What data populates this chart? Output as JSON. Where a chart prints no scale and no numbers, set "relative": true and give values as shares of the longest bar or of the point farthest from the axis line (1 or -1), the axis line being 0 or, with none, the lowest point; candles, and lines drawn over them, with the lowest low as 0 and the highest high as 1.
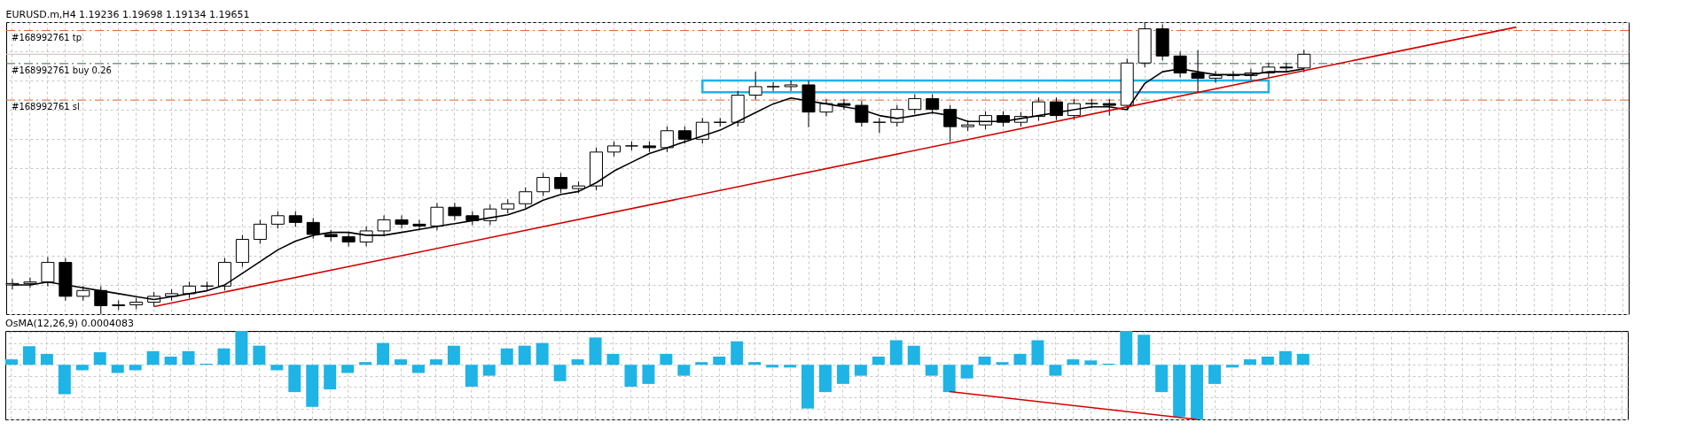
{
  "chart_data": [
    {
      "type": "candlestick",
      "title": "EURUSD.m,H4  1.19236 1.19698 1.19134 1.19651",
      "relative": true,
      "tick_labels": false,
      "grid": true,
      "color": "#000000",
      "categories": [
        null,
        null,
        null,
        null,
        null,
        null,
        null,
        null,
        null,
        null,
        null,
        null,
        null,
        null,
        null,
        null,
        null,
        null,
        null,
        null,
        null,
        null,
        null,
        null,
        null,
        null,
        null,
        null,
        null,
        null,
        null,
        null,
        null,
        null,
        null,
        null,
        null,
        null,
        null,
        null,
        null,
        null,
        null,
        null,
        null,
        null,
        null,
        null,
        null,
        null,
        null,
        null,
        null,
        null,
        null,
        null,
        null,
        null,
        null,
        null,
        null,
        null,
        null,
        null,
        null,
        null,
        null,
        null,
        null,
        null,
        null,
        null,
        null,
        null,
        null,
        null,
        null,
        null,
        null,
        null,
        null,
        null,
        null,
        null,
        null,
        null,
        null,
        null,
        null,
        null,
        null,
        null
      ],
      "ohlc": [
        [
          0.1,
          0.12,
          0.085,
          0.105
        ],
        [
          0.105,
          0.125,
          0.09,
          0.11
        ],
        [
          0.11,
          0.195,
          0.095,
          0.177
        ],
        [
          0.177,
          0.192,
          0.046,
          0.061
        ],
        [
          0.061,
          0.096,
          0.046,
          0.081
        ],
        [
          0.081,
          0.096,
          0,
          0.029
        ],
        [
          0.029,
          0.047,
          0.014,
          0.032
        ],
        [
          0.032,
          0.056,
          0.017,
          0.041
        ],
        [
          0.041,
          0.076,
          0.026,
          0.061
        ],
        [
          0.061,
          0.085,
          0.046,
          0.07
        ],
        [
          0.07,
          0.111,
          0.055,
          0.096
        ],
        [
          0.096,
          0.111,
          0.081,
          0.096
        ],
        [
          0.096,
          0.192,
          0.081,
          0.177
        ],
        [
          0.177,
          0.271,
          0.162,
          0.256
        ],
        [
          0.256,
          0.323,
          0.241,
          0.308
        ],
        [
          0.308,
          0.352,
          0.293,
          0.337
        ],
        [
          0.337,
          0.352,
          0.299,
          0.314
        ],
        [
          0.314,
          0.329,
          0.258,
          0.273
        ],
        [
          0.273,
          0.288,
          0.25,
          0.265
        ],
        [
          0.265,
          0.28,
          0.232,
          0.247
        ],
        [
          0.247,
          0.3,
          0.232,
          0.285
        ],
        [
          0.285,
          0.338,
          0.27,
          0.323
        ],
        [
          0.323,
          0.338,
          0.293,
          0.308
        ],
        [
          0.308,
          0.323,
          0.287,
          0.302
        ],
        [
          0.302,
          0.381,
          0.287,
          0.366
        ],
        [
          0.366,
          0.381,
          0.322,
          0.337
        ],
        [
          0.337,
          0.352,
          0.305,
          0.32
        ],
        [
          0.32,
          0.375,
          0.305,
          0.36
        ],
        [
          0.36,
          0.393,
          0.345,
          0.378
        ],
        [
          0.378,
          0.434,
          0.363,
          0.419
        ],
        [
          0.419,
          0.483,
          0.404,
          0.468
        ],
        [
          0.468,
          0.483,
          0.415,
          0.43
        ],
        [
          0.43,
          0.454,
          0.415,
          0.439
        ],
        [
          0.439,
          0.57,
          0.424,
          0.555
        ],
        [
          0.555,
          0.591,
          0.54,
          0.576
        ],
        [
          0.576,
          0.591,
          0.561,
          0.576
        ],
        [
          0.576,
          0.591,
          0.555,
          0.57
        ],
        [
          0.57,
          0.643,
          0.555,
          0.628
        ],
        [
          0.628,
          0.643,
          0.584,
          0.599
        ],
        [
          0.599,
          0.672,
          0.584,
          0.657
        ],
        [
          0.657,
          0.672,
          0.642,
          0.657
        ],
        [
          0.657,
          0.765,
          0.642,
          0.75
        ],
        [
          0.75,
          0.83,
          0.735,
          0.779
        ],
        [
          0.779,
          0.794,
          0.764,
          0.779
        ],
        [
          0.779,
          0.8,
          0.764,
          0.785
        ],
        [
          0.785,
          0.8,
          0.64,
          0.692
        ],
        [
          0.692,
          0.736,
          0.677,
          0.721
        ],
        [
          0.721,
          0.736,
          0.7,
          0.715
        ],
        [
          0.715,
          0.73,
          0.642,
          0.657
        ],
        [
          0.657,
          0.672,
          0.62,
          0.657
        ],
        [
          0.657,
          0.716,
          0.642,
          0.701
        ],
        [
          0.701,
          0.753,
          0.686,
          0.738
        ],
        [
          0.738,
          0.753,
          0.686,
          0.701
        ],
        [
          0.701,
          0.716,
          0.59,
          0.642
        ],
        [
          0.642,
          0.663,
          0.627,
          0.648
        ],
        [
          0.648,
          0.695,
          0.633,
          0.68
        ],
        [
          0.68,
          0.695,
          0.642,
          0.657
        ],
        [
          0.657,
          0.692,
          0.642,
          0.677
        ],
        [
          0.677,
          0.742,
          0.662,
          0.727
        ],
        [
          0.727,
          0.742,
          0.665,
          0.68
        ],
        [
          0.68,
          0.736,
          0.665,
          0.721
        ],
        [
          0.721,
          0.736,
          0.706,
          0.721
        ],
        [
          0.721,
          0.736,
          0.68,
          0.715
        ],
        [
          0.715,
          0.875,
          0.7,
          0.86
        ],
        [
          0.86,
          1,
          0.845,
          0.977
        ],
        [
          0.977,
          0.992,
          0.869,
          0.884
        ],
        [
          0.884,
          0.899,
          0.811,
          0.826
        ],
        [
          0.826,
          0.904,
          0.76,
          0.808
        ],
        [
          0.808,
          0.832,
          0.793,
          0.817
        ],
        [
          0.817,
          0.832,
          0.802,
          0.817
        ],
        [
          0.817,
          0.841,
          0.802,
          0.826
        ],
        [
          0.826,
          0.861,
          0.811,
          0.846
        ],
        [
          0.846,
          0.861,
          0.828,
          0.843
        ],
        [
          0.843,
          0.905,
          0.828,
          0.89
        ],
        null,
        null,
        null,
        null,
        null,
        null,
        null,
        null,
        null,
        null,
        null,
        null,
        null,
        null,
        null,
        null,
        null,
        null
      ],
      "series": [
        {
          "type": "line",
          "color": "#000000",
          "values": [
            0.1,
            0.1,
            0.11,
            0.1,
            0.09,
            0.08,
            0.07,
            0.06,
            0.05,
            0.06,
            0.07,
            0.08,
            0.1,
            0.14,
            0.18,
            0.22,
            0.25,
            0.27,
            0.28,
            0.28,
            0.27,
            0.27,
            0.28,
            0.29,
            0.3,
            0.31,
            0.32,
            0.33,
            0.34,
            0.36,
            0.39,
            0.41,
            0.42,
            0.45,
            0.49,
            0.52,
            0.55,
            0.57,
            0.59,
            0.61,
            0.63,
            0.66,
            0.69,
            0.72,
            0.74,
            0.73,
            0.72,
            0.71,
            0.7,
            0.68,
            0.67,
            0.68,
            0.69,
            0.68,
            0.66,
            0.66,
            0.66,
            0.67,
            0.68,
            0.69,
            0.7,
            0.71,
            0.71,
            0.7,
            0.79,
            0.83,
            0.84,
            0.83,
            0.82,
            0.82,
            0.82,
            0.83,
            0.83,
            0.84,
            null,
            null,
            null,
            null,
            null,
            null,
            null,
            null,
            null,
            null,
            null,
            null,
            null,
            null,
            null,
            null,
            null,
            null
          ]
        },
        {
          "type": "line",
          "color": "#d40000",
          "values": [
            null,
            null,
            null,
            null,
            null,
            null,
            null,
            null,
            0.026,
            null,
            null,
            null,
            null,
            null,
            null,
            null,
            null,
            null,
            null,
            null,
            null,
            null,
            null,
            null,
            null,
            null,
            null,
            null,
            null,
            null,
            null,
            null,
            null,
            null,
            null,
            null,
            null,
            null,
            null,
            null,
            null,
            null,
            null,
            null,
            null,
            null,
            null,
            null,
            null,
            null,
            null,
            null,
            null,
            null,
            null,
            null,
            null,
            null,
            null,
            null,
            null,
            null,
            null,
            null,
            null,
            null,
            null,
            null,
            null,
            null,
            null,
            null,
            null,
            null,
            null,
            null,
            null,
            null,
            null,
            null,
            null,
            null,
            null,
            null,
            null,
            0.983,
            null,
            null,
            null,
            null,
            null,
            null
          ]
        }
      ],
      "ref_lines": [
        {
          "axis": "y",
          "value": 0.971,
          "label": "#168992761 tp",
          "color": "#e0602a",
          "line_style": "dashed"
        },
        {
          "axis": "y",
          "value": 0.89,
          "color": "#c0c0c0",
          "line_style": "solid"
        },
        {
          "axis": "y",
          "value": 0.858,
          "label": "#168992761 buy 0.26",
          "color": "#2e6b3a",
          "line_style": "dashed"
        },
        {
          "axis": "y",
          "value": 0.733,
          "label": "#168992761 sl",
          "color": "#e0602a",
          "line_style": "dashed"
        }
      ]
    },
    {
      "type": "bar",
      "title": "OsMA(12,26,9) 0.0004083",
      "relative": true,
      "tick_labels": false,
      "grid": true,
      "color": "#1eb4e6",
      "categories": [
        null,
        null,
        null,
        null,
        null,
        null,
        null,
        null,
        null,
        null,
        null,
        null,
        null,
        null,
        null,
        null,
        null,
        null,
        null,
        null,
        null,
        null,
        null,
        null,
        null,
        null,
        null,
        null,
        null,
        null,
        null,
        null,
        null,
        null,
        null,
        null,
        null,
        null,
        null,
        null,
        null,
        null,
        null,
        null,
        null,
        null,
        null,
        null,
        null,
        null,
        null,
        null,
        null,
        null,
        null,
        null,
        null,
        null,
        null,
        null,
        null,
        null,
        null,
        null,
        null,
        null,
        null,
        null,
        null,
        null,
        null,
        null,
        null,
        null,
        null,
        null,
        null,
        null,
        null,
        null,
        null,
        null,
        null,
        null,
        null,
        null,
        null,
        null,
        null,
        null,
        null,
        null
      ],
      "values": [
        0.1,
        0.34,
        0.2,
        -0.54,
        -0.1,
        0.23,
        -0.15,
        -0.1,
        0.25,
        0.15,
        0.25,
        0.02,
        0.3,
        0.62,
        0.35,
        -0.1,
        -0.5,
        -0.77,
        -0.45,
        -0.15,
        0.05,
        0.4,
        0.1,
        -0.15,
        0.1,
        0.35,
        -0.4,
        -0.2,
        0.3,
        0.35,
        0.4,
        -0.3,
        0.1,
        0.5,
        0.2,
        -0.4,
        -0.35,
        0.2,
        -0.2,
        0.05,
        0.15,
        0.43,
        0.05,
        -0.05,
        -0.05,
        -0.8,
        -0.5,
        -0.35,
        -0.2,
        0.15,
        0.45,
        0.35,
        -0.2,
        -0.5,
        -0.25,
        0.15,
        0.05,
        0.2,
        0.45,
        -0.2,
        0.1,
        0.08,
        0.02,
        0.62,
        0.55,
        -0.5,
        -0.95,
        -1,
        -0.35,
        -0.05,
        0.1,
        0.15,
        0.25,
        0.2,
        null,
        null,
        null,
        null,
        null,
        null,
        null,
        null,
        null,
        null,
        null,
        null,
        null,
        null,
        null,
        null,
        null,
        null
      ],
      "series": [
        {
          "type": "line",
          "color": "#d40000",
          "values": [
            null,
            null,
            null,
            null,
            null,
            null,
            null,
            null,
            null,
            null,
            null,
            null,
            null,
            null,
            null,
            null,
            null,
            null,
            null,
            null,
            null,
            null,
            null,
            null,
            null,
            null,
            null,
            null,
            null,
            null,
            null,
            null,
            null,
            null,
            null,
            null,
            null,
            null,
            null,
            null,
            null,
            null,
            null,
            null,
            null,
            null,
            null,
            null,
            null,
            null,
            null,
            null,
            null,
            -0.49,
            null,
            null,
            null,
            null,
            null,
            null,
            null,
            null,
            null,
            null,
            null,
            null,
            null,
            -1,
            null,
            null,
            null,
            null,
            null,
            null,
            null,
            null,
            null,
            null,
            null,
            null,
            null,
            null,
            null,
            null,
            null,
            null,
            null,
            null,
            null,
            null,
            null,
            null
          ]
        }
      ]
    }
  ]
}
